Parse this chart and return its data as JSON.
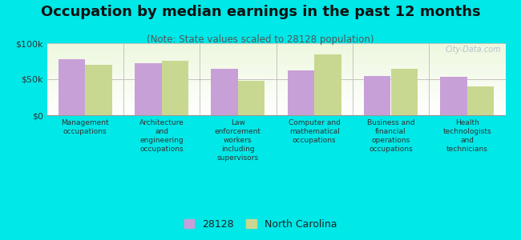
{
  "title": "Occupation by median earnings in the past 12 months",
  "subtitle": "(Note: State values scaled to 28128 population)",
  "background_color": "#00e8e8",
  "categories": [
    "Management\noccupations",
    "Architecture\nand\nengineering\noccupations",
    "Law\nenforcement\nworkers\nincluding\nsupervisors",
    "Computer and\nmathematical\noccupations",
    "Business and\nfinancial\noperations\noccupations",
    "Health\ntechnologists\nand\ntechnicians"
  ],
  "values_28128": [
    78000,
    72000,
    65000,
    62000,
    55000,
    53000
  ],
  "values_nc": [
    70000,
    76000,
    48000,
    85000,
    64000,
    40000
  ],
  "color_28128": "#c8a0d8",
  "color_nc": "#c8d890",
  "ylim": [
    0,
    100000
  ],
  "yticks": [
    0,
    50000,
    100000
  ],
  "ytick_labels": [
    "$0",
    "$50k",
    "$100k"
  ],
  "legend_28128": "28128",
  "legend_nc": "North Carolina",
  "bar_width": 0.35,
  "watermark": "City-Data.com",
  "title_fontsize": 13,
  "subtitle_fontsize": 8.5
}
